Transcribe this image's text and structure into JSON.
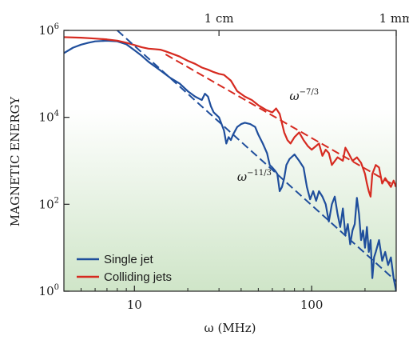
{
  "chart_data": {
    "type": "line",
    "xlabel": "ω (MHz)",
    "ylabel": "MAGNETIC ENERGY",
    "x_scale": "log",
    "y_scale": "log",
    "xlim": [
      4,
      300
    ],
    "ylim": [
      1,
      1000000
    ],
    "x_ticks": [
      {
        "value": 10,
        "label": "10"
      },
      {
        "value": 100,
        "label": "100"
      }
    ],
    "y_ticks": [
      {
        "value": 1,
        "base": "10",
        "exp": "0"
      },
      {
        "value": 100,
        "base": "10",
        "exp": "2"
      },
      {
        "value": 10000,
        "base": "10",
        "exp": "4"
      },
      {
        "value": 1000000,
        "base": "10",
        "exp": "6"
      }
    ],
    "top_ticks": [
      {
        "value": 30,
        "label": "1 cm"
      },
      {
        "value": 300,
        "label": "1 mm"
      }
    ],
    "background": {
      "top": "#ffffff",
      "bottom": "#cfe5c8"
    },
    "series": [
      {
        "name": "Single jet",
        "color": "#1f4e9c",
        "points": [
          [
            4,
            300000
          ],
          [
            4.5,
            400000
          ],
          [
            5,
            470000
          ],
          [
            5.5,
            520000
          ],
          [
            6,
            560000
          ],
          [
            7,
            580000
          ],
          [
            8,
            560000
          ],
          [
            9,
            480000
          ],
          [
            10,
            350000
          ],
          [
            11,
            260000
          ],
          [
            12,
            190000
          ],
          [
            14,
            120000
          ],
          [
            16,
            80000
          ],
          [
            18,
            60000
          ],
          [
            20,
            40000
          ],
          [
            22,
            30000
          ],
          [
            24,
            25000
          ],
          [
            25,
            35000
          ],
          [
            26,
            30000
          ],
          [
            27,
            18000
          ],
          [
            28,
            13000
          ],
          [
            30,
            10000
          ],
          [
            32,
            5000
          ],
          [
            33,
            2500
          ],
          [
            34,
            3500
          ],
          [
            35,
            3000
          ],
          [
            36,
            4000
          ],
          [
            38,
            6000
          ],
          [
            40,
            7000
          ],
          [
            42,
            7500
          ],
          [
            45,
            7000
          ],
          [
            48,
            6000
          ],
          [
            50,
            4000
          ],
          [
            53,
            2500
          ],
          [
            56,
            1500
          ],
          [
            58,
            800
          ],
          [
            60,
            700
          ],
          [
            62,
            600
          ],
          [
            64,
            500
          ],
          [
            66,
            200
          ],
          [
            68,
            250
          ],
          [
            70,
            400
          ],
          [
            72,
            800
          ],
          [
            75,
            1100
          ],
          [
            80,
            1400
          ],
          [
            85,
            1000
          ],
          [
            90,
            700
          ],
          [
            94,
            250
          ],
          [
            98,
            130
          ],
          [
            102,
            200
          ],
          [
            106,
            120
          ],
          [
            110,
            200
          ],
          [
            115,
            150
          ],
          [
            120,
            100
          ],
          [
            125,
            40
          ],
          [
            130,
            100
          ],
          [
            135,
            150
          ],
          [
            140,
            60
          ],
          [
            145,
            30
          ],
          [
            150,
            80
          ],
          [
            155,
            20
          ],
          [
            160,
            35
          ],
          [
            165,
            12
          ],
          [
            170,
            25
          ],
          [
            175,
            35
          ],
          [
            180,
            140
          ],
          [
            185,
            60
          ],
          [
            190,
            15
          ],
          [
            195,
            25
          ],
          [
            200,
            10
          ],
          [
            205,
            30
          ],
          [
            210,
            8
          ],
          [
            215,
            15
          ],
          [
            220,
            2
          ],
          [
            225,
            6
          ],
          [
            230,
            8
          ],
          [
            240,
            15
          ],
          [
            250,
            5
          ],
          [
            260,
            8
          ],
          [
            270,
            4
          ],
          [
            280,
            6
          ],
          [
            290,
            2
          ],
          [
            300,
            1
          ]
        ]
      },
      {
        "name": "Colliding jets",
        "color": "#d62a20",
        "points": [
          [
            4,
            700000
          ],
          [
            5,
            680000
          ],
          [
            6,
            650000
          ],
          [
            7,
            620000
          ],
          [
            8,
            580000
          ],
          [
            9,
            520000
          ],
          [
            10,
            460000
          ],
          [
            11,
            410000
          ],
          [
            12,
            380000
          ],
          [
            13,
            370000
          ],
          [
            14,
            360000
          ],
          [
            15,
            330000
          ],
          [
            16,
            300000
          ],
          [
            18,
            250000
          ],
          [
            20,
            200000
          ],
          [
            22,
            170000
          ],
          [
            24,
            140000
          ],
          [
            26,
            125000
          ],
          [
            28,
            110000
          ],
          [
            30,
            100000
          ],
          [
            32,
            95000
          ],
          [
            35,
            70000
          ],
          [
            38,
            40000
          ],
          [
            42,
            30000
          ],
          [
            46,
            25000
          ],
          [
            50,
            19000
          ],
          [
            55,
            15000
          ],
          [
            60,
            13000
          ],
          [
            63,
            16000
          ],
          [
            66,
            12000
          ],
          [
            70,
            4500
          ],
          [
            73,
            3000
          ],
          [
            76,
            2500
          ],
          [
            80,
            3500
          ],
          [
            85,
            4500
          ],
          [
            90,
            3000
          ],
          [
            95,
            2200
          ],
          [
            100,
            1800
          ],
          [
            110,
            2500
          ],
          [
            115,
            1300
          ],
          [
            120,
            1800
          ],
          [
            125,
            1500
          ],
          [
            130,
            800
          ],
          [
            140,
            1200
          ],
          [
            150,
            1000
          ],
          [
            155,
            2000
          ],
          [
            160,
            1600
          ],
          [
            170,
            1000
          ],
          [
            180,
            1200
          ],
          [
            190,
            900
          ],
          [
            200,
            500
          ],
          [
            205,
            300
          ],
          [
            210,
            200
          ],
          [
            215,
            150
          ],
          [
            220,
            500
          ],
          [
            230,
            800
          ],
          [
            240,
            700
          ],
          [
            250,
            300
          ],
          [
            260,
            400
          ],
          [
            280,
            250
          ],
          [
            290,
            350
          ],
          [
            300,
            250
          ]
        ]
      }
    ],
    "fits": [
      {
        "label_base": "ω",
        "label_exp": "−11/3",
        "exponent": -3.6667,
        "color": "#1f4e9c",
        "x_start": 8,
        "x_end": 300,
        "y_at_x0": 1000000,
        "x0": 8,
        "label_anchor_x": 38,
        "label_anchor_y": 350
      },
      {
        "label_base": "ω",
        "label_exp": "−7/3",
        "exponent": -2.3333,
        "color": "#d62a20",
        "x_start": 15,
        "x_end": 300,
        "y_at_x0": 280000,
        "x0": 15,
        "label_anchor_x": 75,
        "label_anchor_y": 25000
      }
    ]
  }
}
